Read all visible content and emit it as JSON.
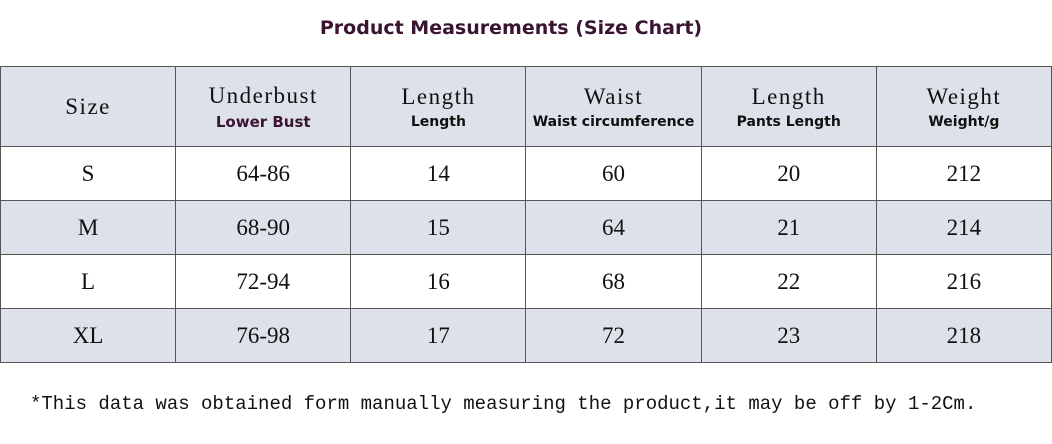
{
  "title": "Product Measurements (Size Chart)",
  "table": {
    "header": [
      {
        "label": "Size"
      },
      {
        "label": "Underbust",
        "sub": "Lower Bust"
      },
      {
        "label": "Length",
        "sub": "Length"
      },
      {
        "label": "Waist",
        "sub": "Waist circumference"
      },
      {
        "label": "Length",
        "sub": "Pants Length"
      },
      {
        "label": "Weight",
        "sub": "Weight/g"
      }
    ],
    "rows": [
      [
        "S",
        "64-86",
        14,
        60,
        20,
        212
      ],
      [
        "M",
        "68-90",
        15,
        64,
        21,
        214
      ],
      [
        "L",
        "72-94",
        16,
        68,
        22,
        216
      ],
      [
        "XL",
        "76-98",
        17,
        72,
        23,
        218
      ]
    ]
  },
  "footnote": "*This data was obtained form manually measuring the product,it may be off by 1-2Cm."
}
